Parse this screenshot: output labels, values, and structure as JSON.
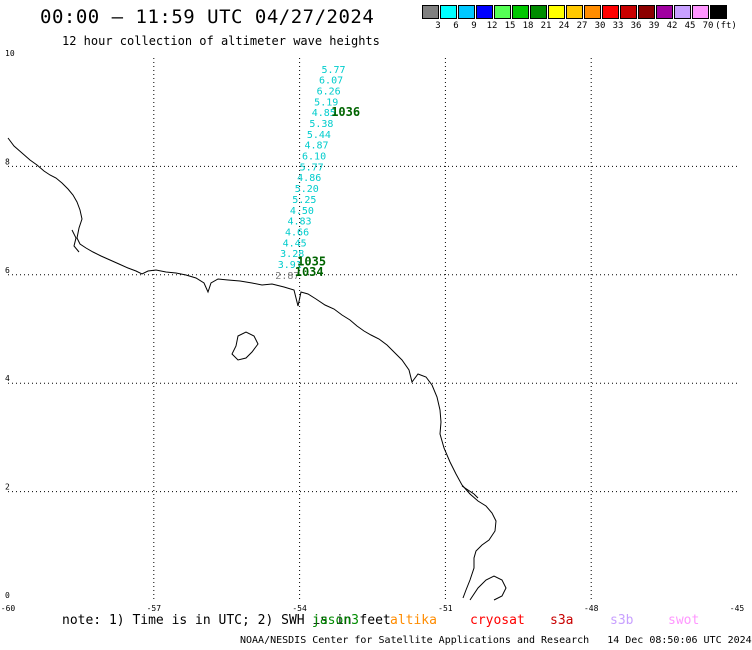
{
  "header": {
    "title": "00:00 — 11:59 UTC 04/27/2024",
    "subtitle": "12 hour collection of altimeter wave heights"
  },
  "legend": {
    "unit": "(ft)",
    "items": [
      {
        "label": "3",
        "color": "#808080"
      },
      {
        "label": "6",
        "color": "#00ffff"
      },
      {
        "label": "9",
        "color": "#00c8ff"
      },
      {
        "label": "12",
        "color": "#0000ff"
      },
      {
        "label": "15",
        "color": "#55ff55"
      },
      {
        "label": "18",
        "color": "#00c800"
      },
      {
        "label": "21",
        "color": "#008c00"
      },
      {
        "label": "24",
        "color": "#ffff00"
      },
      {
        "label": "27",
        "color": "#ffc800"
      },
      {
        "label": "30",
        "color": "#ff8c00"
      },
      {
        "label": "33",
        "color": "#ff0000"
      },
      {
        "label": "36",
        "color": "#c80000"
      },
      {
        "label": "39",
        "color": "#8c0000"
      },
      {
        "label": "42",
        "color": "#a000a0"
      },
      {
        "label": "45",
        "color": "#c8a0ff"
      },
      {
        "label": "70",
        "color": "#ff96ff"
      },
      {
        "label": "",
        "color": "#000000"
      }
    ]
  },
  "map": {
    "lon_range": [
      -60,
      -45
    ],
    "lat_range": [
      0,
      10
    ],
    "x_ticks": [
      "-60",
      "-57",
      "-54",
      "-51",
      "-48",
      "-45"
    ],
    "y_ticks": [
      "0",
      "2",
      "4",
      "6",
      "8",
      "10"
    ],
    "colors": {
      "track": "#00cccc",
      "low": "#808080",
      "time": "#006400",
      "coast": "#000000",
      "grid": "#000000"
    },
    "track_labels": [
      {
        "v": "5.77",
        "lon": -53.55,
        "lat": 9.8
      },
      {
        "v": "6.07",
        "lon": -53.6,
        "lat": 9.6
      },
      {
        "v": "6.26",
        "lon": -53.65,
        "lat": 9.4
      },
      {
        "v": "5.19",
        "lon": -53.7,
        "lat": 9.2
      },
      {
        "v": "4.85",
        "lon": -53.75,
        "lat": 9.0
      },
      {
        "v": "5.38",
        "lon": -53.8,
        "lat": 8.8
      },
      {
        "v": "5.44",
        "lon": -53.85,
        "lat": 8.6
      },
      {
        "v": "4.87",
        "lon": -53.9,
        "lat": 8.4
      },
      {
        "v": "6.10",
        "lon": -53.95,
        "lat": 8.2
      },
      {
        "v": "5.77",
        "lon": -54.0,
        "lat": 8.0
      },
      {
        "v": "4.86",
        "lon": -54.05,
        "lat": 7.8
      },
      {
        "v": "5.20",
        "lon": -54.1,
        "lat": 7.6
      },
      {
        "v": "5.25",
        "lon": -54.15,
        "lat": 7.4
      },
      {
        "v": "4.50",
        "lon": -54.2,
        "lat": 7.2
      },
      {
        "v": "4.83",
        "lon": -54.25,
        "lat": 7.0
      },
      {
        "v": "4.66",
        "lon": -54.3,
        "lat": 6.8
      },
      {
        "v": "4.45",
        "lon": -54.35,
        "lat": 6.6
      },
      {
        "v": "3.28",
        "lon": -54.4,
        "lat": 6.4
      },
      {
        "v": "3.91",
        "lon": -54.45,
        "lat": 6.2
      },
      {
        "v": "2.87",
        "lon": -54.5,
        "lat": 6.0,
        "low": true
      }
    ],
    "time_labels": [
      {
        "v": "1036",
        "lon": -53.35,
        "lat": 9.0
      },
      {
        "v": "1035",
        "lon": -54.05,
        "lat": 6.25
      },
      {
        "v": "1034",
        "lon": -54.1,
        "lat": 6.05
      }
    ]
  },
  "note": "note: 1) Time is in UTC; 2) SWH is in feet",
  "satellites": [
    {
      "name": "jason3",
      "color": "#008c00"
    },
    {
      "name": "altika",
      "color": "#ff8c00"
    },
    {
      "name": "cryosat",
      "color": "#ff0000"
    },
    {
      "name": "s3a",
      "color": "#c80000"
    },
    {
      "name": "s3b",
      "color": "#c8a0ff"
    },
    {
      "name": "swot",
      "color": "#ff96ff"
    }
  ],
  "footer": {
    "credit": "NOAA/NESDIS Center for Satellite Applications and Research",
    "timestamp": "14 Dec 08:50:06 UTC 2024"
  }
}
